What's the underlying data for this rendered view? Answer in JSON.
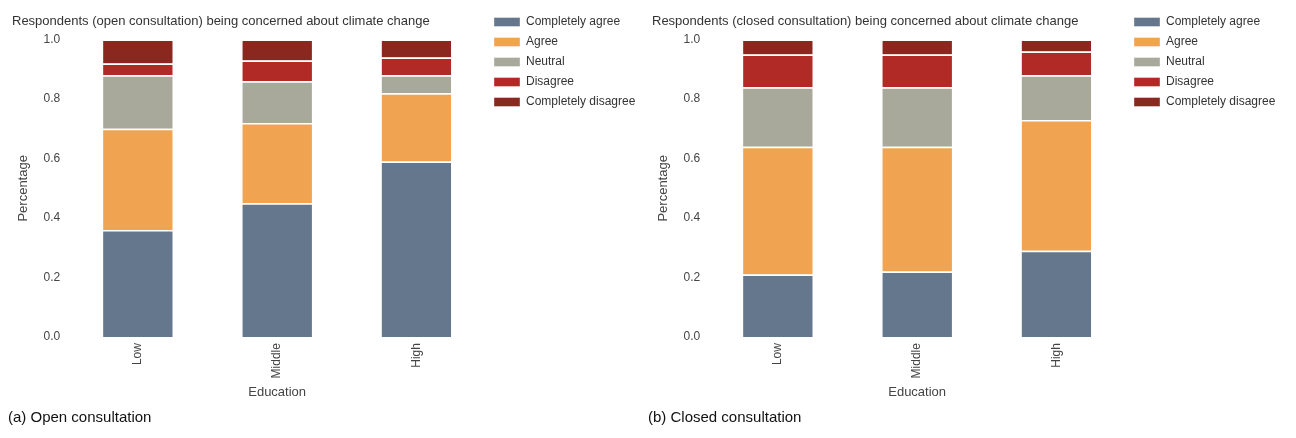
{
  "chart_data": [
    {
      "type": "bar",
      "title": "Respondents (open consultation) being concerned about climate change",
      "xlabel": "Education",
      "ylabel": "Percentage",
      "categories": [
        "Low",
        "Middle",
        "High"
      ],
      "stacked": true,
      "ylim": [
        0,
        1
      ],
      "yticks": [
        {
          "value": 0,
          "label": "0.0"
        },
        {
          "value": 0.2,
          "label": "0.2"
        },
        {
          "value": 0.4,
          "label": "0.4"
        },
        {
          "value": 0.6,
          "label": "0.6"
        },
        {
          "value": 0.8,
          "label": "0.8"
        },
        {
          "value": 1,
          "label": "1.0"
        }
      ],
      "legend": "top right",
      "annotations": [
        "(a) Open consultation"
      ],
      "series": [
        {
          "name": "Completely agree",
          "color": "#64778c",
          "values": [
            0.36,
            0.45,
            0.59
          ]
        },
        {
          "name": "Agree",
          "color": "#f0a452",
          "values": [
            0.34,
            0.27,
            0.23
          ]
        },
        {
          "name": "Neutral",
          "color": "#a9a99b",
          "values": [
            0.18,
            0.14,
            0.06
          ]
        },
        {
          "name": "Disagree",
          "color": "#b22a25",
          "values": [
            0.04,
            0.07,
            0.06
          ]
        },
        {
          "name": "Completely disagree",
          "color": "#8a2820",
          "values": [
            0.08,
            0.07,
            0.06
          ]
        }
      ]
    },
    {
      "type": "bar",
      "title": "Respondents (closed consultation) being concerned about climate change",
      "xlabel": "Education",
      "ylabel": "Percentage",
      "categories": [
        "Low",
        "Middle",
        "High"
      ],
      "stacked": true,
      "ylim": [
        0,
        1
      ],
      "yticks": [
        {
          "value": 0,
          "label": "0.0"
        },
        {
          "value": 0.2,
          "label": "0.2"
        },
        {
          "value": 0.4,
          "label": "0.4"
        },
        {
          "value": 0.6,
          "label": "0.6"
        },
        {
          "value": 0.8,
          "label": "0.8"
        },
        {
          "value": 1,
          "label": "1.0"
        }
      ],
      "legend": "top right",
      "annotations": [
        "(b) Closed consultation"
      ],
      "series": [
        {
          "name": "Completely agree",
          "color": "#64778c",
          "values": [
            0.21,
            0.22,
            0.29
          ]
        },
        {
          "name": "Agree",
          "color": "#f0a452",
          "values": [
            0.43,
            0.42,
            0.44
          ]
        },
        {
          "name": "Neutral",
          "color": "#a9a99b",
          "values": [
            0.2,
            0.2,
            0.15
          ]
        },
        {
          "name": "Disagree",
          "color": "#b22a25",
          "values": [
            0.11,
            0.11,
            0.08
          ]
        },
        {
          "name": "Completely disagree",
          "color": "#8a2820",
          "values": [
            0.05,
            0.05,
            0.04
          ]
        }
      ]
    }
  ]
}
